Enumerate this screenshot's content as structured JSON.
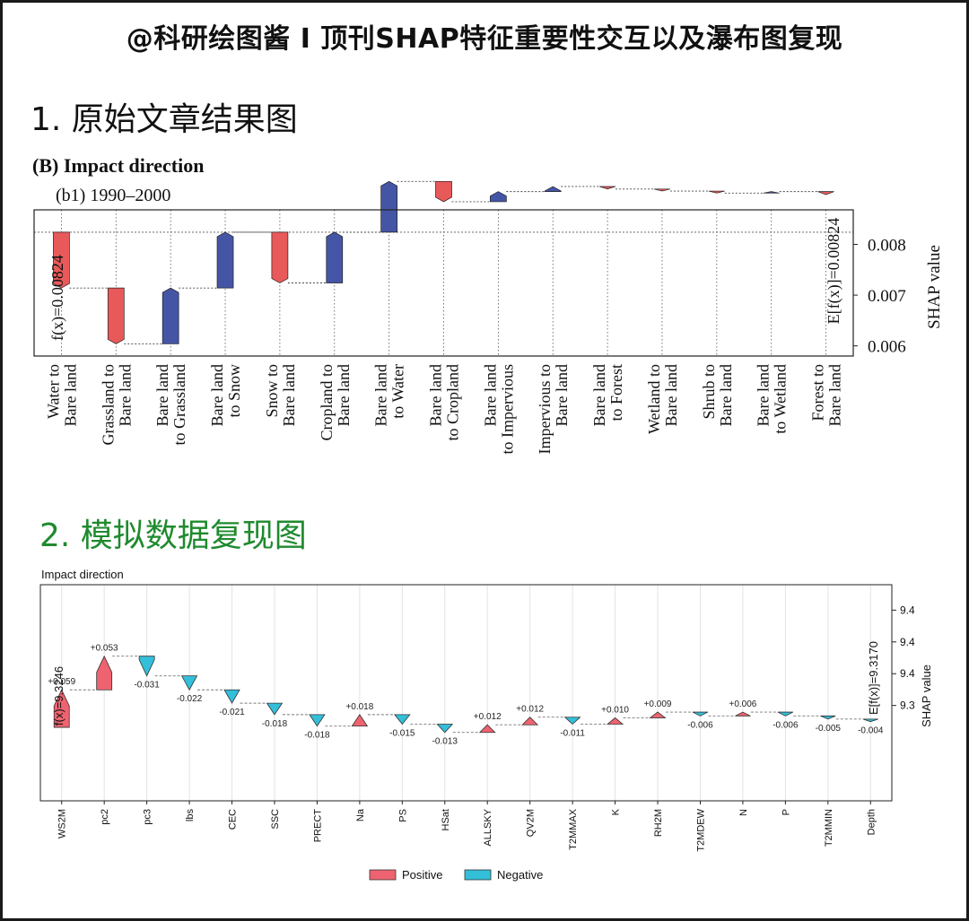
{
  "page": {
    "title": "@科研绘图酱 I 顶刊SHAP特征重要性交互以及瀑布图复现",
    "section1": "1. 原始文章结果图",
    "section2": "2. 模拟数据复现图"
  },
  "colors": {
    "orig_positive": "#e8595a",
    "orig_negative": "#4555a6",
    "sim_positive": "#ef6370",
    "sim_negative": "#33bfd9",
    "section2_title": "#1f8a2e"
  },
  "chart_data": [
    {
      "type": "waterfall",
      "panel_title": "(B) Impact direction",
      "subtitle": "(b1) 1990–2000",
      "ylabel": "SHAP value",
      "ylim": [
        0.0058,
        0.00868
      ],
      "yticks": [
        0.006,
        0.007,
        0.008
      ],
      "ytick_labels": [
        "0.006",
        "0.007",
        "0.008"
      ],
      "fx_label": "f(x)=0.00824",
      "efx_label": "E[f(x)]=0.00824",
      "start_value": 0.00824,
      "baseline": 0.00824,
      "categories": [
        "Water to\nBare land",
        "Grassland to\nBare land",
        "Bare land\nto Grassland",
        "Bare land\nto Snow",
        "Snow to\nBare land",
        "Cropland to\nBare land",
        "Bare land\nto Water",
        "Bare land\nto Cropland",
        "Bare land\nto Impervious",
        "Impervious to\nBare land",
        "Bare land\nto Forest",
        "Wetland to\nBare land",
        "Shrub to\nBare land",
        "Bare land\nto Wetland",
        "Forest to\nBare land"
      ],
      "values": [
        0.0011,
        0.0011,
        -0.0011,
        -0.0011,
        0.001,
        -0.001,
        -0.001,
        0.0004,
        -0.0002,
        -0.0001,
        5e-05,
        4e-05,
        4e-05,
        -3e-05,
        6e-05
      ]
    },
    {
      "type": "waterfall",
      "panel_title": "Impact direction",
      "ylabel": "SHAP value",
      "ylim": [
        9.15,
        9.49
      ],
      "ytick_labels": [
        "9.3",
        "9.4",
        "9.4",
        "9.4"
      ],
      "fx_label": "f(x)=9.3246",
      "efx_label": "E[f(x)]=9.3170",
      "start_value": 9.3246,
      "baseline": 9.317,
      "categories": [
        "WS2M",
        "pc2",
        "pc3",
        "lbs",
        "CEC",
        "SSC",
        "PRECT",
        "Na",
        "PS",
        "HSat",
        "ALLSKY",
        "QV2M",
        "T2MMAX",
        "K",
        "RH2M",
        "T2MDEW",
        "N",
        "P",
        "T2MMIN",
        "Depth"
      ],
      "values": [
        0.059,
        0.053,
        -0.031,
        -0.022,
        -0.021,
        -0.018,
        -0.018,
        0.018,
        -0.015,
        -0.013,
        0.012,
        0.012,
        -0.011,
        0.01,
        0.009,
        -0.006,
        0.006,
        -0.006,
        -0.005,
        -0.004
      ],
      "value_labels": [
        "+0.059",
        "+0.053",
        "-0.031",
        "-0.022",
        "-0.021",
        "-0.018",
        "-0.018",
        "+0.018",
        "-0.015",
        "-0.013",
        "+0.012",
        "+0.012",
        "-0.011",
        "+0.010",
        "+0.009",
        "-0.006",
        "+0.006",
        "-0.006",
        "-0.005",
        "-0.004"
      ],
      "legend": [
        {
          "label": "Positive",
          "key": "sim_positive"
        },
        {
          "label": "Negative",
          "key": "sim_negative"
        }
      ]
    }
  ]
}
